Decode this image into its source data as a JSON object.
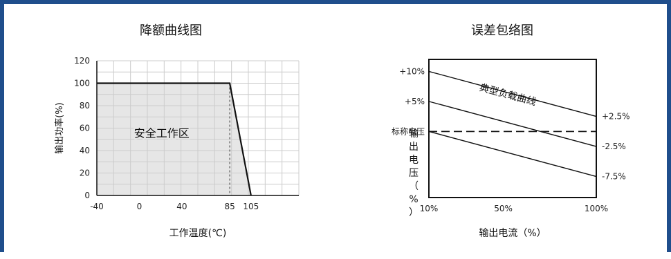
{
  "chart_data": [
    {
      "type": "area",
      "title": "降额曲线图",
      "xlabel": "工作温度(℃)",
      "ylabel": "输出功率(%)",
      "x_ticks": [
        "-40",
        "0",
        "40",
        "85",
        "105"
      ],
      "y_ticks": [
        "0",
        "20",
        "40",
        "60",
        "80",
        "100",
        "120"
      ],
      "xlim": [
        -40,
        150
      ],
      "ylim": [
        0,
        120
      ],
      "grid": true,
      "series": [
        {
          "x": [
            -40,
            85,
            105
          ],
          "y": [
            100,
            100,
            0
          ]
        }
      ],
      "region_label": "安全工作区",
      "dashed_line_x": 85,
      "colors": {
        "area": "#e6e6e6",
        "grid": "#cccccc",
        "line": "#111111"
      }
    },
    {
      "type": "line",
      "title": "误差包络图",
      "xlabel": "输出电流（%）",
      "ylabel": "输出电压（%）",
      "x_ticks": [
        "10%",
        "50%",
        "100%"
      ],
      "y_ticks": [
        "+10%",
        "+5%",
        "标称电压"
      ],
      "right_labels": [
        "+2.5%",
        "-2.5%",
        "-7.5%"
      ],
      "xlim": [
        10,
        100
      ],
      "ylim": [
        -11,
        12
      ],
      "grid": false,
      "series": [
        {
          "x": [
            10,
            100
          ],
          "y": [
            10,
            2.5
          ]
        },
        {
          "x": [
            10,
            100
          ],
          "y": [
            5,
            -2.5
          ]
        },
        {
          "x": [
            10,
            100
          ],
          "y": [
            0,
            -7.5
          ]
        }
      ],
      "nominal_dashed_y": 0,
      "curve_label": "典型负载曲线"
    }
  ]
}
